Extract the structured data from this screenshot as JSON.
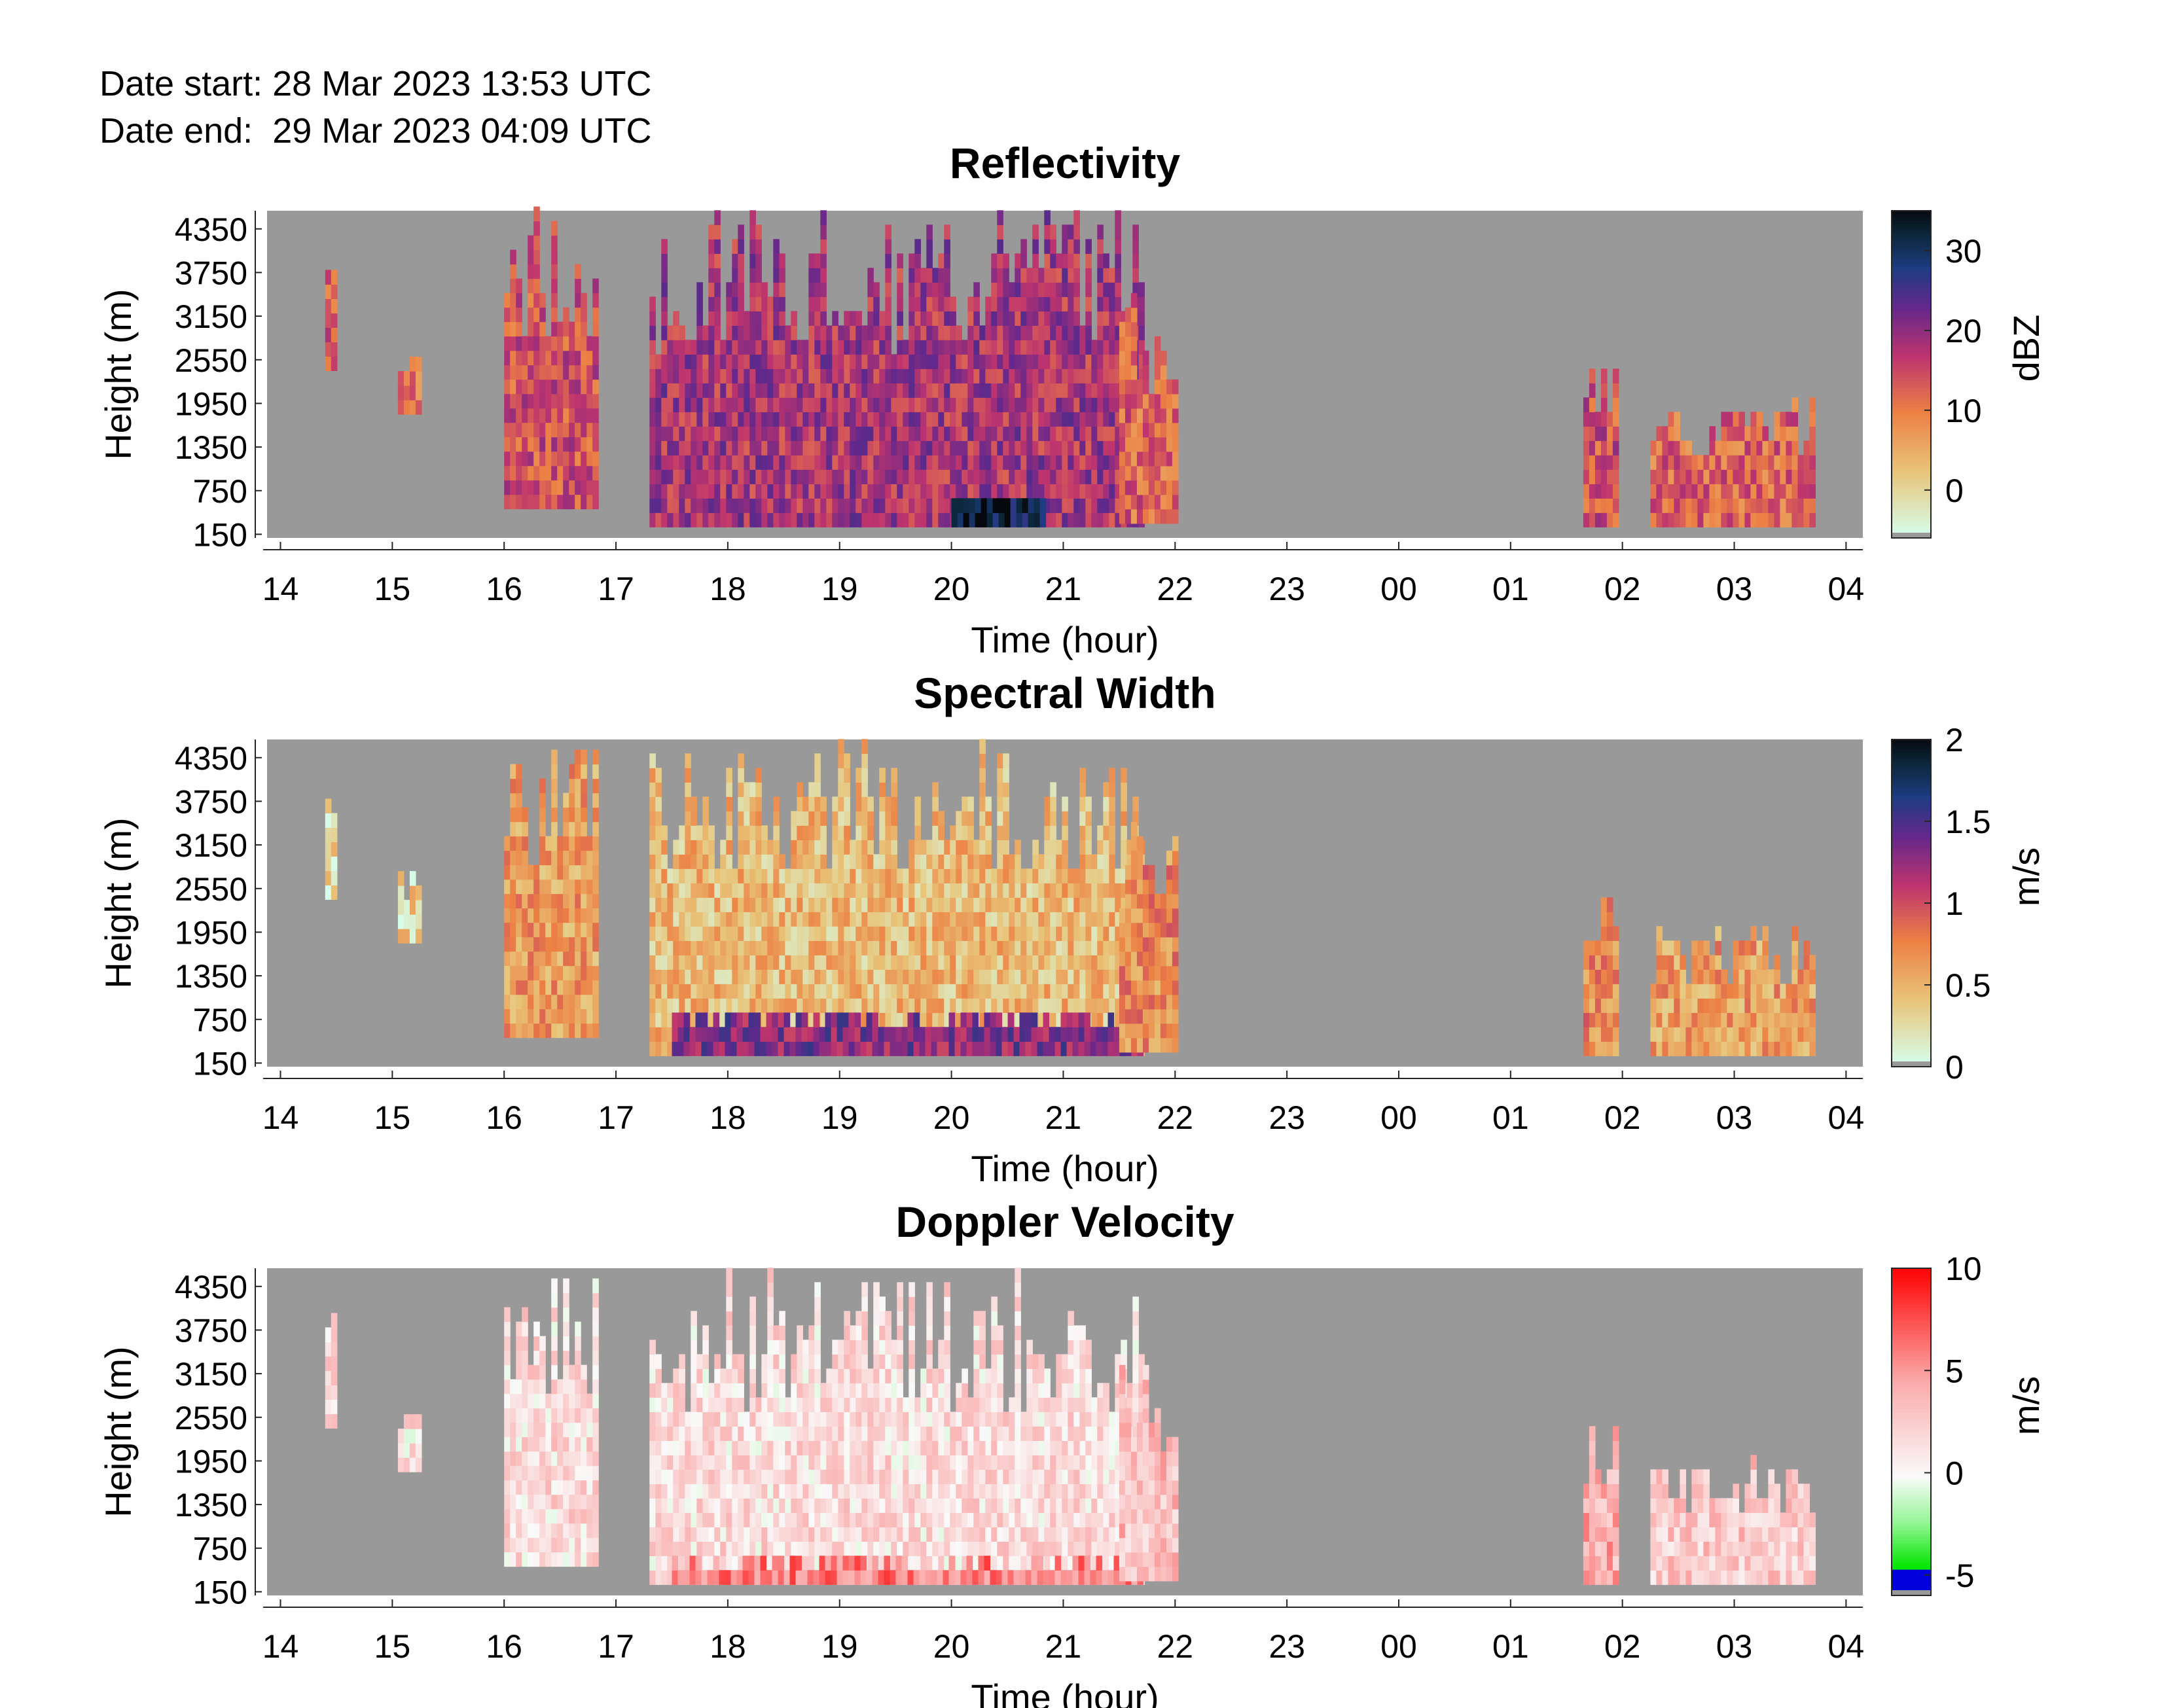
{
  "header": {
    "date_start_label": "Date start:",
    "date_start_value": "28 Mar 2023 13:53 UTC",
    "date_end_label": "Date end:",
    "date_end_value": "29 Mar 2023 04:09 UTC"
  },
  "colors": {
    "background": "#ffffff",
    "no_data": "#999999",
    "axis": "#262626"
  },
  "chart_data": [
    {
      "type": "heatmap",
      "title": "Reflectivity",
      "xlabel": "Time (hour)",
      "ylabel": "Height (m)",
      "colorbar_label": "dBZ",
      "colormap": "light-cyan to orange to magenta to navy to black",
      "clim": [
        -6,
        35
      ],
      "colorbar_ticks": [
        0,
        10,
        20,
        30
      ],
      "x_tick_labels": [
        "14",
        "15",
        "16",
        "17",
        "18",
        "19",
        "20",
        "21",
        "22",
        "23",
        "00",
        "01",
        "02",
        "03",
        "04"
      ],
      "y_tick_labels": [
        150,
        750,
        1350,
        1950,
        2550,
        3150,
        3750,
        4350
      ],
      "xlim_hours": [
        13.88,
        28.15
      ],
      "ylim_m": [
        100,
        4600
      ],
      "echo_regions": [
        {
          "t": [
            14.4,
            14.5
          ],
          "h": [
            2400,
            3900
          ],
          "value": 12
        },
        {
          "t": [
            15.05,
            15.25
          ],
          "h": [
            1800,
            2700
          ],
          "value": 10
        },
        {
          "t": [
            16.0,
            16.8
          ],
          "h": [
            500,
            4500
          ],
          "value": 14
        },
        {
          "t": [
            17.3,
            21.7
          ],
          "h": [
            250,
            4500
          ],
          "value": 18
        },
        {
          "t": [
            20.0,
            20.8
          ],
          "h": [
            250,
            650
          ],
          "value": 32
        },
        {
          "t": [
            21.5,
            22.0
          ],
          "h": [
            300,
            3400
          ],
          "value": 12
        },
        {
          "t": [
            25.65,
            25.95
          ],
          "h": [
            250,
            2500
          ],
          "value": 14
        },
        {
          "t": [
            26.25,
            27.7
          ],
          "h": [
            250,
            1900
          ],
          "value": 12
        }
      ]
    },
    {
      "type": "heatmap",
      "title": "Spectral Width",
      "xlabel": "Time (hour)",
      "ylabel": "Height (m)",
      "colorbar_label": "m/s",
      "colormap": "light-cyan to orange to magenta to navy to black",
      "clim": [
        0,
        2
      ],
      "colorbar_ticks": [
        "0",
        "0.5",
        "1",
        "1.5",
        "2"
      ],
      "x_tick_labels": [
        "14",
        "15",
        "16",
        "17",
        "18",
        "19",
        "20",
        "21",
        "22",
        "23",
        "00",
        "01",
        "02",
        "03",
        "04"
      ],
      "y_tick_labels": [
        150,
        750,
        1350,
        1950,
        2550,
        3150,
        3750,
        4350
      ],
      "xlim_hours": [
        13.88,
        28.15
      ],
      "ylim_m": [
        100,
        4600
      ],
      "echo_regions": [
        {
          "t": [
            14.4,
            14.5
          ],
          "h": [
            2400,
            3900
          ],
          "value": 0.25
        },
        {
          "t": [
            15.05,
            15.25
          ],
          "h": [
            1800,
            2700
          ],
          "value": 0.3
        },
        {
          "t": [
            16.0,
            16.8
          ],
          "h": [
            500,
            4500
          ],
          "value": 0.6
        },
        {
          "t": [
            17.3,
            21.7
          ],
          "h": [
            250,
            4500
          ],
          "value": 0.45
        },
        {
          "t": [
            17.5,
            21.7
          ],
          "h": [
            250,
            800
          ],
          "value": 1.3
        },
        {
          "t": [
            21.5,
            22.0
          ],
          "h": [
            300,
            3400
          ],
          "value": 0.7
        },
        {
          "t": [
            25.65,
            25.95
          ],
          "h": [
            250,
            2500
          ],
          "value": 0.7
        },
        {
          "t": [
            26.25,
            27.7
          ],
          "h": [
            250,
            1900
          ],
          "value": 0.6
        }
      ]
    },
    {
      "type": "heatmap",
      "title": "Doppler Velocity",
      "xlabel": "Time (hour)",
      "ylabel": "Height (m)",
      "colorbar_label": "m/s",
      "colormap": "blue to green to white to red",
      "clim": [
        -6,
        10
      ],
      "colorbar_ticks": [
        -5,
        0,
        5,
        10
      ],
      "x_tick_labels": [
        "14",
        "15",
        "16",
        "17",
        "18",
        "19",
        "20",
        "21",
        "22",
        "23",
        "00",
        "01",
        "02",
        "03",
        "04"
      ],
      "y_tick_labels": [
        150,
        750,
        1350,
        1950,
        2550,
        3150,
        3750,
        4350
      ],
      "xlim_hours": [
        13.88,
        28.15
      ],
      "ylim_m": [
        100,
        4600
      ],
      "echo_regions": [
        {
          "t": [
            14.4,
            14.5
          ],
          "h": [
            2400,
            3900
          ],
          "value": 1.5
        },
        {
          "t": [
            15.05,
            15.25
          ],
          "h": [
            1800,
            2700
          ],
          "value": 1.2
        },
        {
          "t": [
            16.0,
            16.8
          ],
          "h": [
            500,
            4500
          ],
          "value": 1.5
        },
        {
          "t": [
            17.3,
            21.7
          ],
          "h": [
            250,
            4500
          ],
          "value": 1.5
        },
        {
          "t": [
            17.5,
            21.7
          ],
          "h": [
            250,
            500
          ],
          "value": 6
        },
        {
          "t": [
            21.5,
            22.0
          ],
          "h": [
            300,
            3400
          ],
          "value": 3
        },
        {
          "t": [
            25.65,
            25.95
          ],
          "h": [
            250,
            2500
          ],
          "value": 4
        },
        {
          "t": [
            26.25,
            27.7
          ],
          "h": [
            250,
            1900
          ],
          "value": 2.5
        }
      ]
    }
  ]
}
